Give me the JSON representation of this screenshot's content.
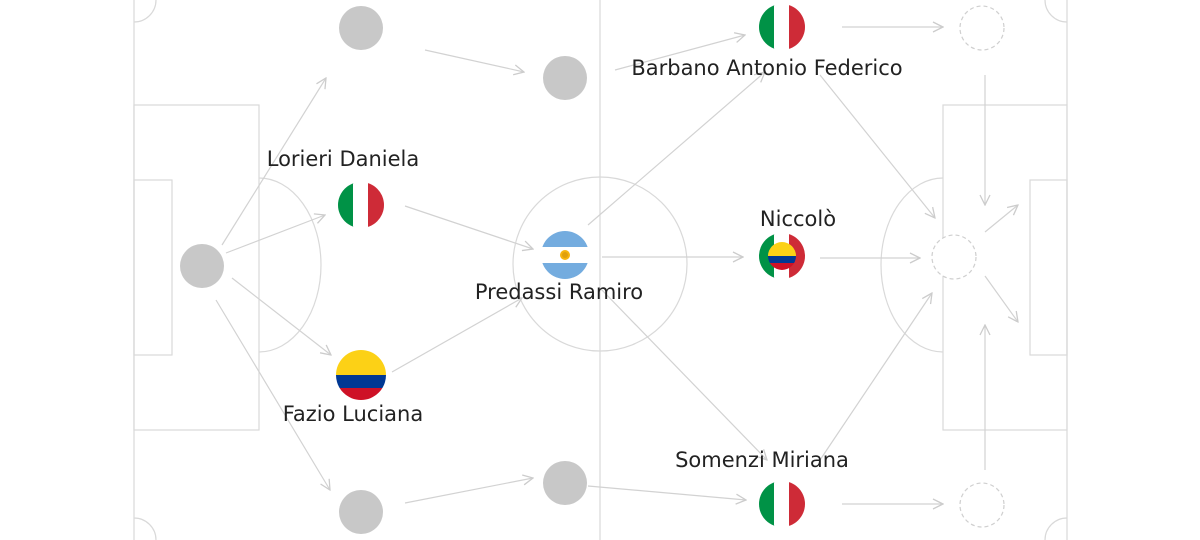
{
  "players": {
    "lorieri": {
      "name": "Lorieri Daniela",
      "flag": "italy"
    },
    "fazio": {
      "name": "Fazio Luciana",
      "flag": "colombia"
    },
    "predassi": {
      "name": "Predassi Ramiro",
      "flag": "argentina"
    },
    "barbano": {
      "name": "Barbano Antonio Federico",
      "flag": "italy"
    },
    "niccolo": {
      "name": "Niccolò",
      "flag": "italy-colombia"
    },
    "somenzi": {
      "name": "Somenzi Miriana",
      "flag": "italy"
    }
  },
  "colors": {
    "pitch_lines": "#d9d9d9",
    "arrows": "#d2d2d2",
    "empty_node": "#c8c8c8",
    "italy_green": "#009246",
    "italy_red": "#ce2b37",
    "colombia_yellow": "#fcd116",
    "colombia_blue": "#003893",
    "colombia_red": "#ce1126",
    "argentina_blue": "#74acdf",
    "argentina_sun": "#f6b40e"
  }
}
